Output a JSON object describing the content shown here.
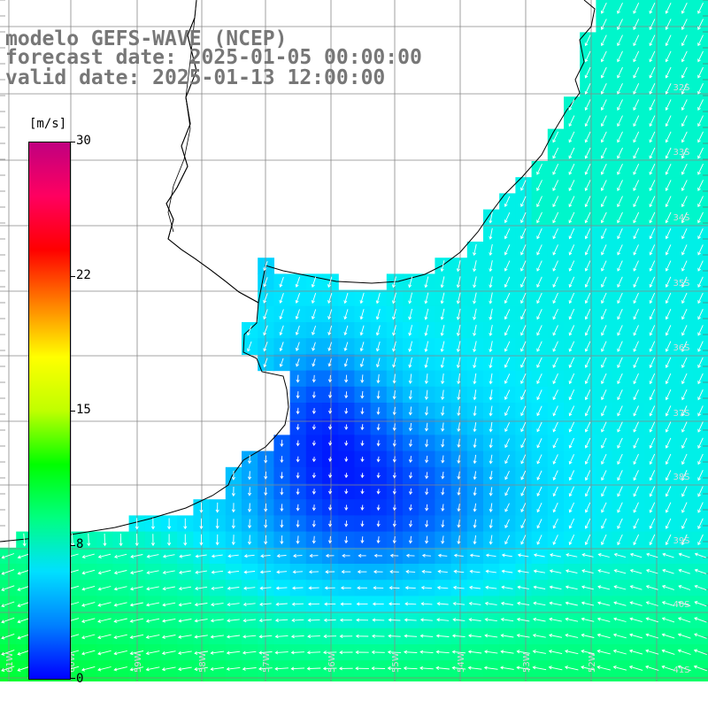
{
  "header": {
    "line1": "modelo GEFS-WAVE (NCEP)",
    "line2": "forecast date: 2025-01-05 00:00:00",
    "line3": "valid date: 2025-01-13 12:00:00"
  },
  "colorbar": {
    "unit": "[m/s]",
    "ticks": [
      "30",
      "22",
      "15",
      "8",
      "0"
    ],
    "colors": [
      "#0000ff",
      "#0080ff",
      "#00e0ff",
      "#00ff80",
      "#00ff00",
      "#c0ff00",
      "#ffff00",
      "#ff8000",
      "#ff0000",
      "#ff0060",
      "#c00080"
    ]
  },
  "map": {
    "lat_labels": [
      "32S",
      "33S",
      "34S",
      "35S",
      "36S",
      "37S",
      "38S",
      "39S",
      "40S",
      "41S"
    ],
    "lon_labels": [
      "61W",
      "60W",
      "59W",
      "58W",
      "57W",
      "56W",
      "55W",
      "54W",
      "53W",
      "52W"
    ],
    "land_color": "#ffffff",
    "arrow_color": "#ffffff",
    "grid_color": "#888888"
  }
}
